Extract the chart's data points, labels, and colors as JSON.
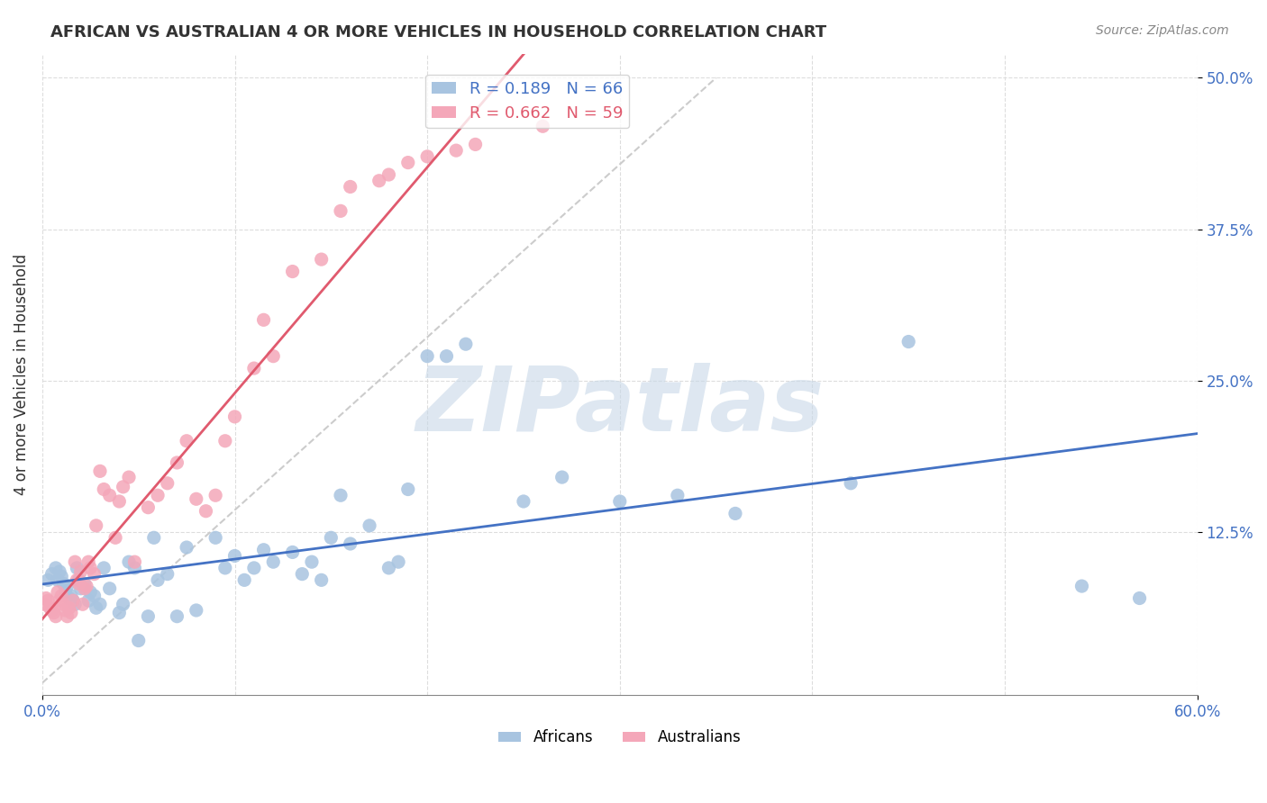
{
  "title": "AFRICAN VS AUSTRALIAN 4 OR MORE VEHICLES IN HOUSEHOLD CORRELATION CHART",
  "source": "Source: ZipAtlas.com",
  "xlabel": "",
  "ylabel": "4 or more Vehicles in Household",
  "xlim": [
    0.0,
    0.6
  ],
  "ylim": [
    -0.01,
    0.52
  ],
  "yticks_right": [
    0.125,
    0.25,
    0.375,
    0.5
  ],
  "yticklabels_right": [
    "12.5%",
    "25.0%",
    "37.5%",
    "50.0%"
  ],
  "africans_R": 0.189,
  "africans_N": 66,
  "australians_R": 0.662,
  "australians_N": 59,
  "african_color": "#a8c4e0",
  "australian_color": "#f4a7b9",
  "african_line_color": "#4472c4",
  "australian_line_color": "#e05a6e",
  "watermark": "ZIPatlas",
  "watermark_color": "#c8d8e8",
  "background_color": "#ffffff",
  "grid_color": "#dddddd",
  "africans_x": [
    0.003,
    0.005,
    0.007,
    0.008,
    0.009,
    0.01,
    0.011,
    0.012,
    0.013,
    0.014,
    0.015,
    0.016,
    0.017,
    0.018,
    0.019,
    0.02,
    0.022,
    0.024,
    0.025,
    0.027,
    0.028,
    0.03,
    0.032,
    0.035,
    0.04,
    0.042,
    0.045,
    0.048,
    0.05,
    0.055,
    0.058,
    0.06,
    0.065,
    0.07,
    0.075,
    0.08,
    0.09,
    0.095,
    0.1,
    0.105,
    0.11,
    0.115,
    0.12,
    0.13,
    0.135,
    0.14,
    0.145,
    0.15,
    0.155,
    0.16,
    0.17,
    0.18,
    0.185,
    0.19,
    0.2,
    0.21,
    0.22,
    0.25,
    0.27,
    0.3,
    0.33,
    0.36,
    0.42,
    0.45,
    0.54,
    0.57
  ],
  "africans_y": [
    0.085,
    0.09,
    0.095,
    0.085,
    0.092,
    0.088,
    0.082,
    0.075,
    0.08,
    0.07,
    0.072,
    0.068,
    0.065,
    0.095,
    0.085,
    0.078,
    0.082,
    0.068,
    0.075,
    0.072,
    0.062,
    0.065,
    0.095,
    0.078,
    0.058,
    0.065,
    0.1,
    0.095,
    0.035,
    0.055,
    0.12,
    0.085,
    0.09,
    0.055,
    0.112,
    0.06,
    0.12,
    0.095,
    0.105,
    0.085,
    0.095,
    0.11,
    0.1,
    0.108,
    0.09,
    0.1,
    0.085,
    0.12,
    0.155,
    0.115,
    0.13,
    0.095,
    0.1,
    0.16,
    0.27,
    0.27,
    0.28,
    0.15,
    0.17,
    0.15,
    0.155,
    0.14,
    0.165,
    0.282,
    0.08,
    0.07
  ],
  "australians_x": [
    0.001,
    0.002,
    0.003,
    0.004,
    0.005,
    0.006,
    0.007,
    0.008,
    0.009,
    0.01,
    0.011,
    0.012,
    0.013,
    0.014,
    0.015,
    0.016,
    0.017,
    0.018,
    0.019,
    0.02,
    0.021,
    0.022,
    0.023,
    0.024,
    0.025,
    0.027,
    0.028,
    0.03,
    0.032,
    0.035,
    0.038,
    0.04,
    0.042,
    0.045,
    0.048,
    0.055,
    0.06,
    0.065,
    0.07,
    0.075,
    0.08,
    0.085,
    0.09,
    0.095,
    0.1,
    0.11,
    0.115,
    0.12,
    0.13,
    0.145,
    0.155,
    0.16,
    0.175,
    0.18,
    0.19,
    0.2,
    0.215,
    0.225,
    0.26
  ],
  "australians_y": [
    0.065,
    0.07,
    0.068,
    0.062,
    0.06,
    0.058,
    0.055,
    0.075,
    0.068,
    0.072,
    0.065,
    0.06,
    0.055,
    0.062,
    0.058,
    0.068,
    0.1,
    0.085,
    0.082,
    0.092,
    0.065,
    0.078,
    0.08,
    0.1,
    0.095,
    0.09,
    0.13,
    0.175,
    0.16,
    0.155,
    0.12,
    0.15,
    0.162,
    0.17,
    0.1,
    0.145,
    0.155,
    0.165,
    0.182,
    0.2,
    0.152,
    0.142,
    0.155,
    0.2,
    0.22,
    0.26,
    0.3,
    0.27,
    0.34,
    0.35,
    0.39,
    0.41,
    0.415,
    0.42,
    0.43,
    0.435,
    0.44,
    0.445,
    0.46
  ]
}
